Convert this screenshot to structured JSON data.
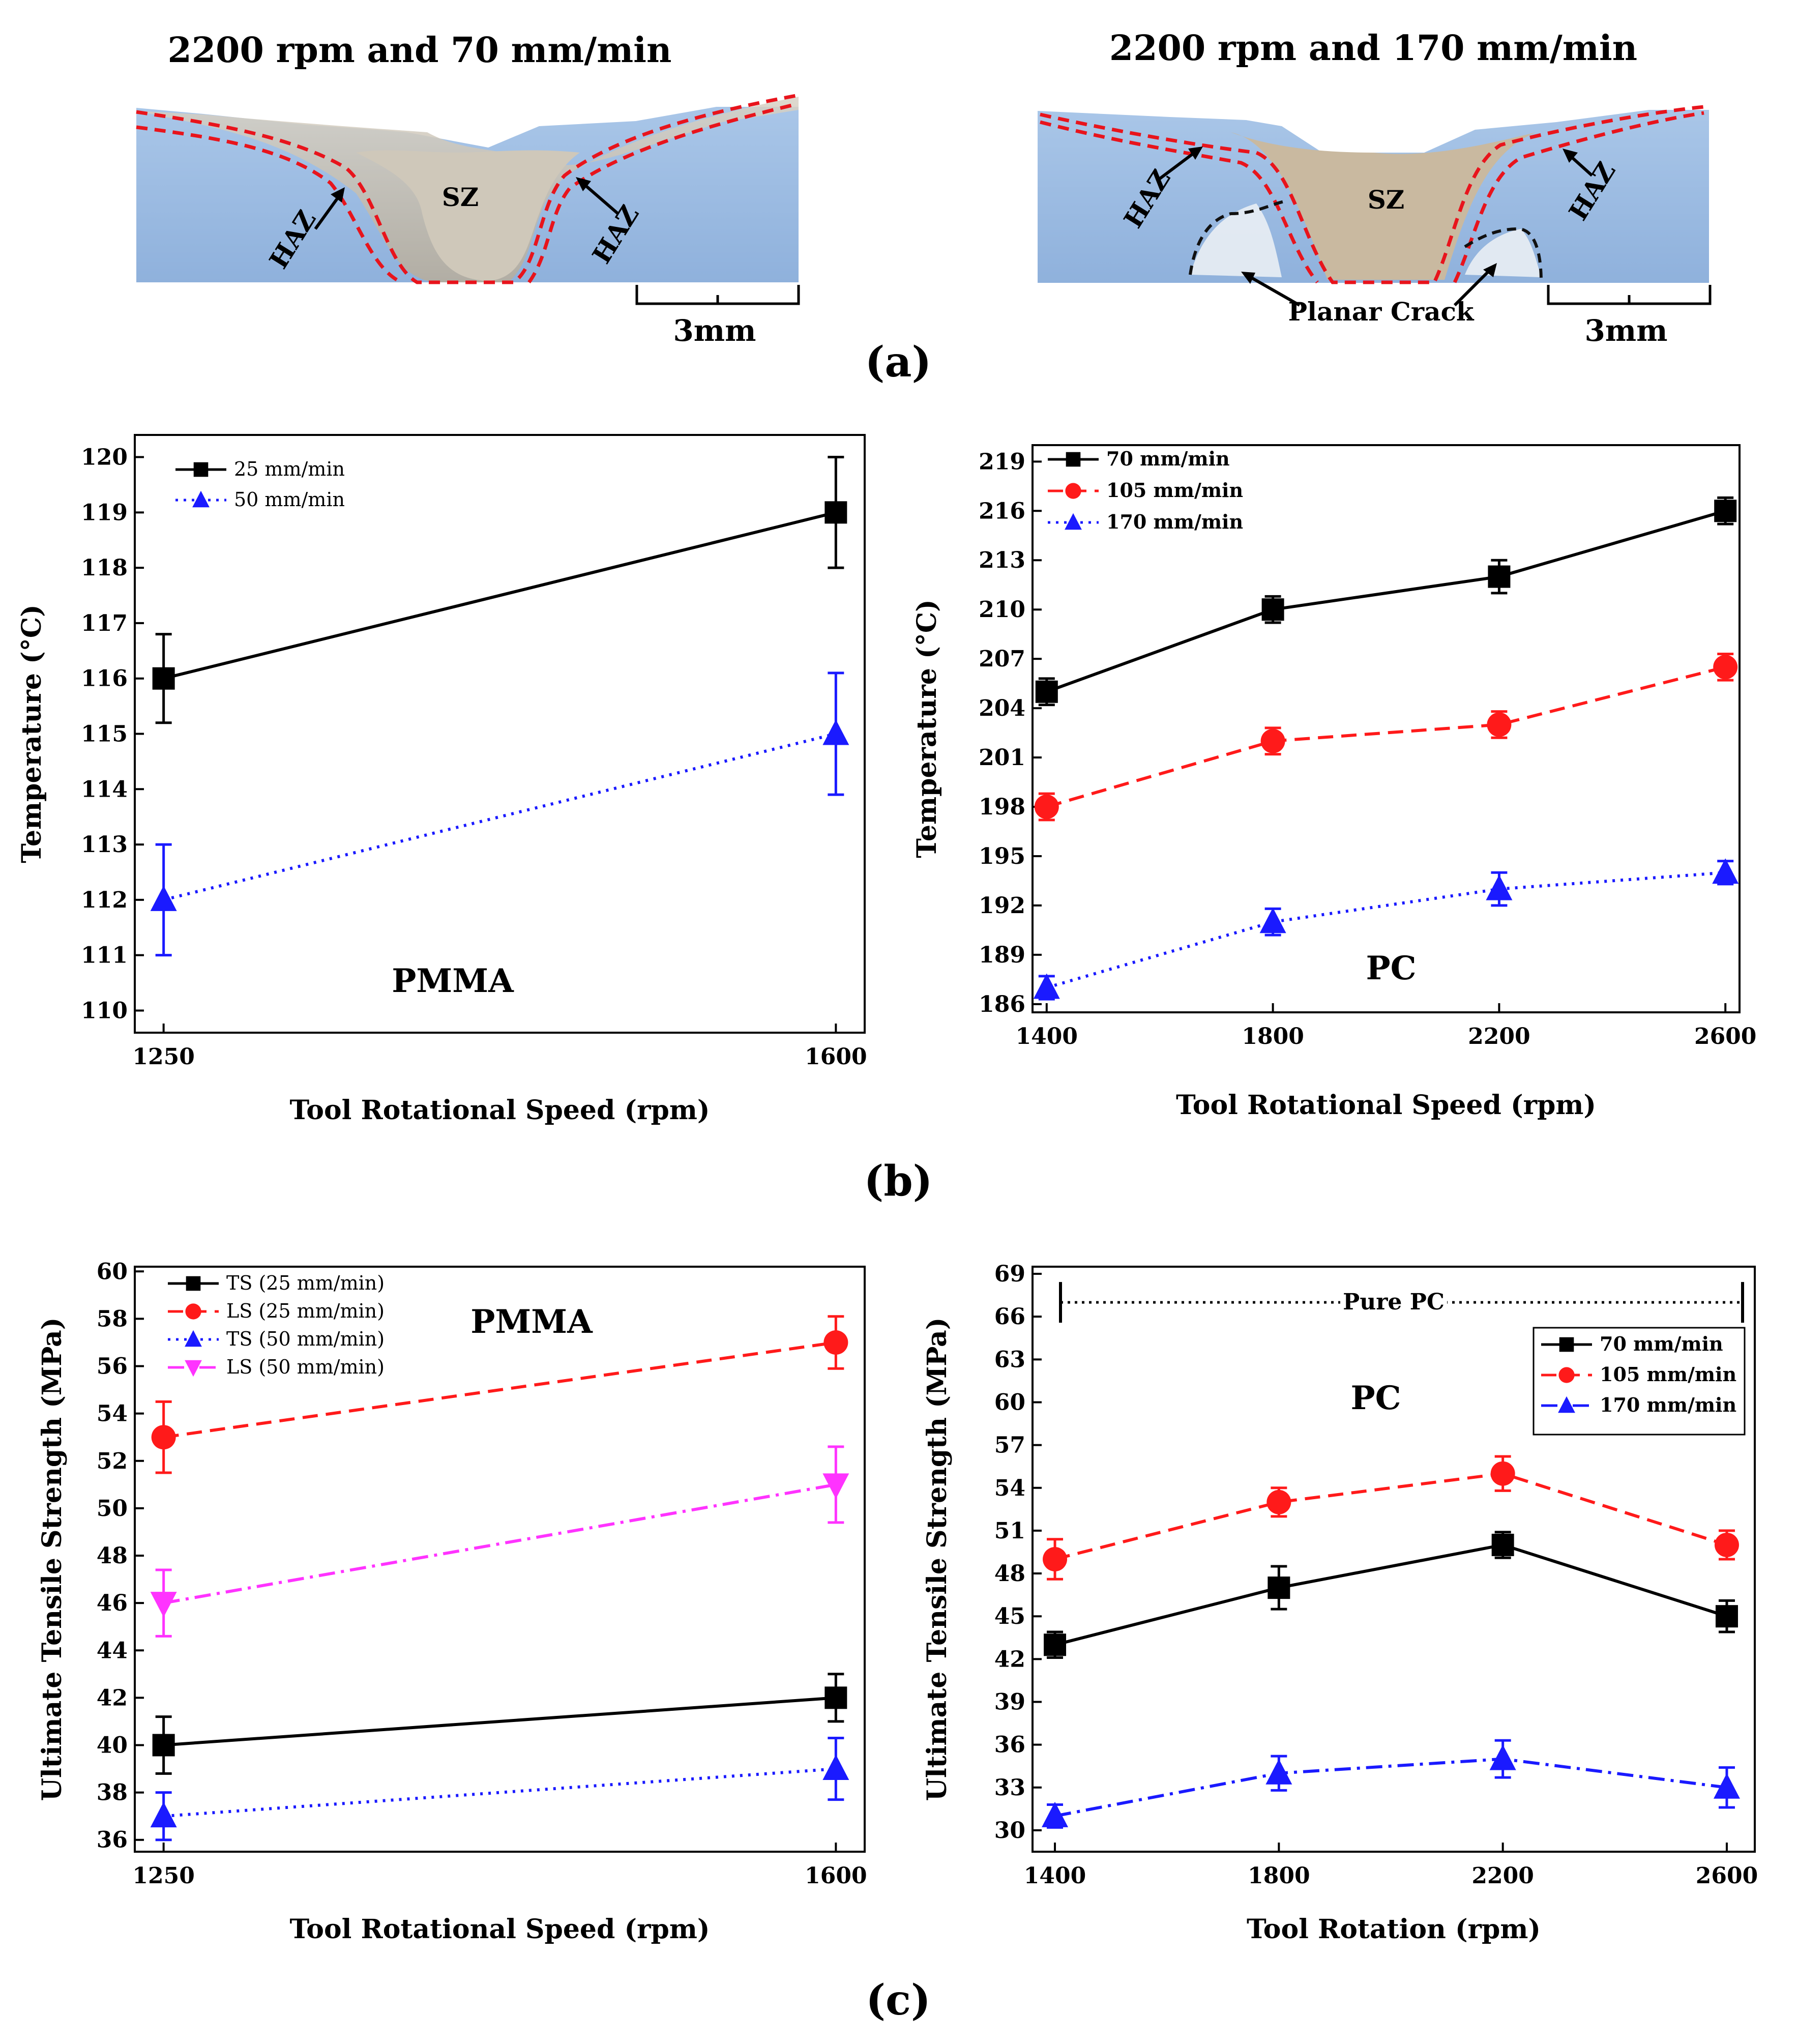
{
  "panel_labels": {
    "a": "(a)",
    "b": "(b)",
    "c": "(c)"
  },
  "photos": [
    {
      "title": "2200 rpm and 70 mm/min",
      "sz_label": "SZ",
      "haz_left": "HAZ",
      "haz_right": "HAZ",
      "scale_label": "3mm"
    },
    {
      "title": "2200 rpm and 170 mm/min",
      "sz_label": "SZ",
      "haz_left": "HAZ",
      "haz_right": "HAZ",
      "crack_label": "Planar Crack",
      "scale_label": "3mm"
    }
  ],
  "colors": {
    "black": "#000000",
    "red": "#ff1a1a",
    "blue": "#1a1aff",
    "magenta": "#ff33ff"
  },
  "chart_data": [
    {
      "type": "line",
      "title": "PMMA",
      "xlabel": "Tool Rotational Speed (rpm)",
      "ylabel": "Temperature (°C)",
      "x": [
        1250,
        1600
      ],
      "xticks": [
        "1250",
        "1600"
      ],
      "xlim": [
        1235,
        1615
      ],
      "ylim": [
        109.6,
        120.4
      ],
      "yticks": [
        110,
        111,
        112,
        113,
        114,
        115,
        116,
        117,
        118,
        119,
        120
      ],
      "series": [
        {
          "name": "25 mm/min",
          "values": [
            116,
            119
          ],
          "errors": [
            0.8,
            1.0
          ],
          "color": "#000000",
          "marker": "square",
          "dash": "solid"
        },
        {
          "name": "50 mm/min",
          "values": [
            112,
            115
          ],
          "errors": [
            1.0,
            1.1
          ],
          "color": "#1a1aff",
          "marker": "triangle",
          "dash": "dot"
        }
      ]
    },
    {
      "type": "line",
      "title": "PC",
      "xlabel": "Tool Rotational Speed (rpm)",
      "ylabel": "Temperature (°C)",
      "x": [
        1400,
        1800,
        2200,
        2600
      ],
      "xticks": [
        "1400",
        "1800",
        "2200",
        "2600"
      ],
      "xlim": [
        1375,
        2625
      ],
      "ylim": [
        185.5,
        220
      ],
      "yticks": [
        186,
        189,
        192,
        195,
        198,
        201,
        204,
        207,
        210,
        213,
        216,
        219
      ],
      "series": [
        {
          "name": "70 mm/min",
          "values": [
            205,
            210,
            212,
            216
          ],
          "errors": [
            0.8,
            0.8,
            1.0,
            0.8
          ],
          "color": "#000000",
          "marker": "square",
          "dash": "solid"
        },
        {
          "name": "105 mm/min",
          "values": [
            198,
            202,
            203,
            206.5
          ],
          "errors": [
            0.8,
            0.8,
            0.8,
            0.8
          ],
          "color": "#ff1a1a",
          "marker": "circle",
          "dash": "dash"
        },
        {
          "name": "170 mm/min",
          "values": [
            187,
            191,
            193,
            194
          ],
          "errors": [
            0.7,
            0.8,
            1.0,
            0.7
          ],
          "color": "#1a1aff",
          "marker": "triangle",
          "dash": "dot"
        }
      ]
    },
    {
      "type": "line",
      "title": "PMMA",
      "xlabel": "Tool Rotational Speed (rpm)",
      "ylabel": "Ultimate Tensile Strength (MPa)",
      "x": [
        1250,
        1600
      ],
      "xticks": [
        "1250",
        "1600"
      ],
      "xlim": [
        1235,
        1615
      ],
      "ylim": [
        35.5,
        60.2
      ],
      "yticks": [
        36,
        38,
        40,
        42,
        44,
        46,
        48,
        50,
        52,
        54,
        56,
        58,
        60
      ],
      "series": [
        {
          "name": "TS (25 mm/min)",
          "values": [
            40,
            42
          ],
          "errors": [
            1.2,
            1.0
          ],
          "color": "#000000",
          "marker": "square",
          "dash": "solid"
        },
        {
          "name": "LS (25 mm/min)",
          "values": [
            53,
            57
          ],
          "errors": [
            1.5,
            1.1
          ],
          "color": "#ff1a1a",
          "marker": "circle",
          "dash": "dash"
        },
        {
          "name": "TS (50 mm/min)",
          "values": [
            37,
            39
          ],
          "errors": [
            1.0,
            1.3
          ],
          "color": "#1a1aff",
          "marker": "triangle",
          "dash": "dot"
        },
        {
          "name": "LS (50 mm/min)",
          "values": [
            46,
            51
          ],
          "errors": [
            1.4,
            1.6
          ],
          "color": "#ff33ff",
          "marker": "triangle-down",
          "dash": "dashdot"
        }
      ]
    },
    {
      "type": "line",
      "title": "PC",
      "xlabel": "Tool Rotation (rpm)",
      "ylabel": "Ultimate Tensile Strength (MPa)",
      "x": [
        1400,
        1800,
        2200,
        2600
      ],
      "xticks": [
        "1400",
        "1800",
        "2200",
        "2600"
      ],
      "xlim": [
        1360,
        2650
      ],
      "ylim": [
        28.5,
        69.5
      ],
      "yticks": [
        30,
        33,
        36,
        39,
        42,
        45,
        48,
        51,
        54,
        57,
        60,
        63,
        66,
        69
      ],
      "reference": {
        "label": "Pure PC",
        "value": 67
      },
      "series": [
        {
          "name": "70 mm/min",
          "values": [
            43,
            47,
            50,
            45
          ],
          "errors": [
            0.9,
            1.5,
            0.9,
            1.1
          ],
          "color": "#000000",
          "marker": "square",
          "dash": "solid"
        },
        {
          "name": "105 mm/min",
          "values": [
            49,
            53,
            55,
            50
          ],
          "errors": [
            1.4,
            1.0,
            1.2,
            1.0
          ],
          "color": "#ff1a1a",
          "marker": "circle",
          "dash": "dash"
        },
        {
          "name": "170 mm/min",
          "values": [
            31,
            34,
            35,
            33
          ],
          "errors": [
            0.8,
            1.2,
            1.3,
            1.4
          ],
          "color": "#1a1aff",
          "marker": "triangle",
          "dash": "dashdot"
        }
      ]
    }
  ]
}
